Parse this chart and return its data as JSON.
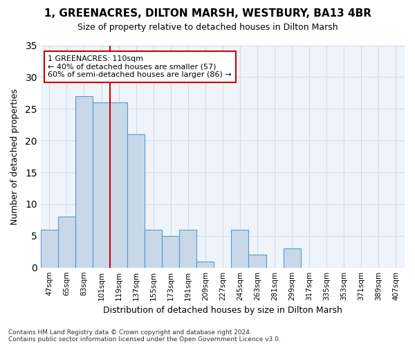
{
  "title": "1, GREENACRES, DILTON MARSH, WESTBURY, BA13 4BR",
  "subtitle": "Size of property relative to detached houses in Dilton Marsh",
  "xlabel": "Distribution of detached houses by size in Dilton Marsh",
  "ylabel": "Number of detached properties",
  "footnote1": "Contains HM Land Registry data © Crown copyright and database right 2024.",
  "footnote2": "Contains public sector information licensed under the Open Government Licence v3.0.",
  "bin_labels": [
    "47sqm",
    "65sqm",
    "83sqm",
    "101sqm",
    "119sqm",
    "137sqm",
    "155sqm",
    "173sqm",
    "191sqm",
    "209sqm",
    "227sqm",
    "245sqm",
    "263sqm",
    "281sqm",
    "299sqm",
    "317sqm",
    "335sqm",
    "353sqm",
    "371sqm",
    "389sqm",
    "407sqm"
  ],
  "bar_values": [
    6,
    8,
    27,
    26,
    26,
    21,
    6,
    5,
    6,
    1,
    0,
    6,
    2,
    0,
    3,
    0,
    0,
    0,
    0,
    0,
    0
  ],
  "bar_color": "#c8d8e8",
  "bar_edge_color": "#5599cc",
  "grid_color": "#ccddee",
  "background_color": "#eef4fa",
  "vline_x": 3.5,
  "vline_color": "#cc0000",
  "annotation_text": "1 GREENACRES: 110sqm\n← 40% of detached houses are smaller (57)\n60% of semi-detached houses are larger (86) →",
  "annotation_box_color": "#cc0000",
  "ylim": [
    0,
    35
  ],
  "yticks": [
    0,
    5,
    10,
    15,
    20,
    25,
    30,
    35
  ]
}
